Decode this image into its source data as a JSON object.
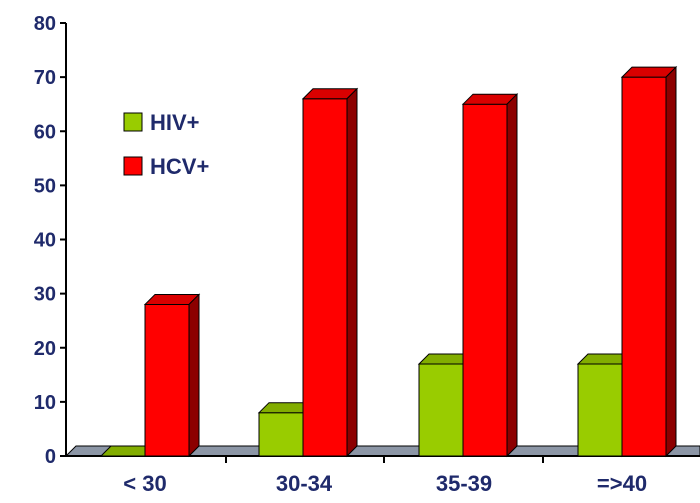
{
  "chart_data": {
    "type": "bar",
    "categories": [
      "< 30",
      "30-34",
      "35-39",
      "=>40"
    ],
    "series": [
      {
        "name": "HIV+",
        "values": [
          0,
          8,
          17,
          17
        ],
        "color": "#99cc00"
      },
      {
        "name": "HCV+",
        "values": [
          28,
          66,
          65,
          70
        ],
        "color": "#ff0000"
      }
    ],
    "ylim": [
      0,
      80
    ],
    "yticks": [
      0,
      10,
      20,
      30,
      40,
      50,
      60,
      70,
      80
    ],
    "title": "",
    "xlabel": "",
    "ylabel": "",
    "legend_position": "top-left",
    "grid": false,
    "style": "3d-bar",
    "floor_color": "#8c96a6",
    "axis_text_color": "#1f2a6b"
  }
}
